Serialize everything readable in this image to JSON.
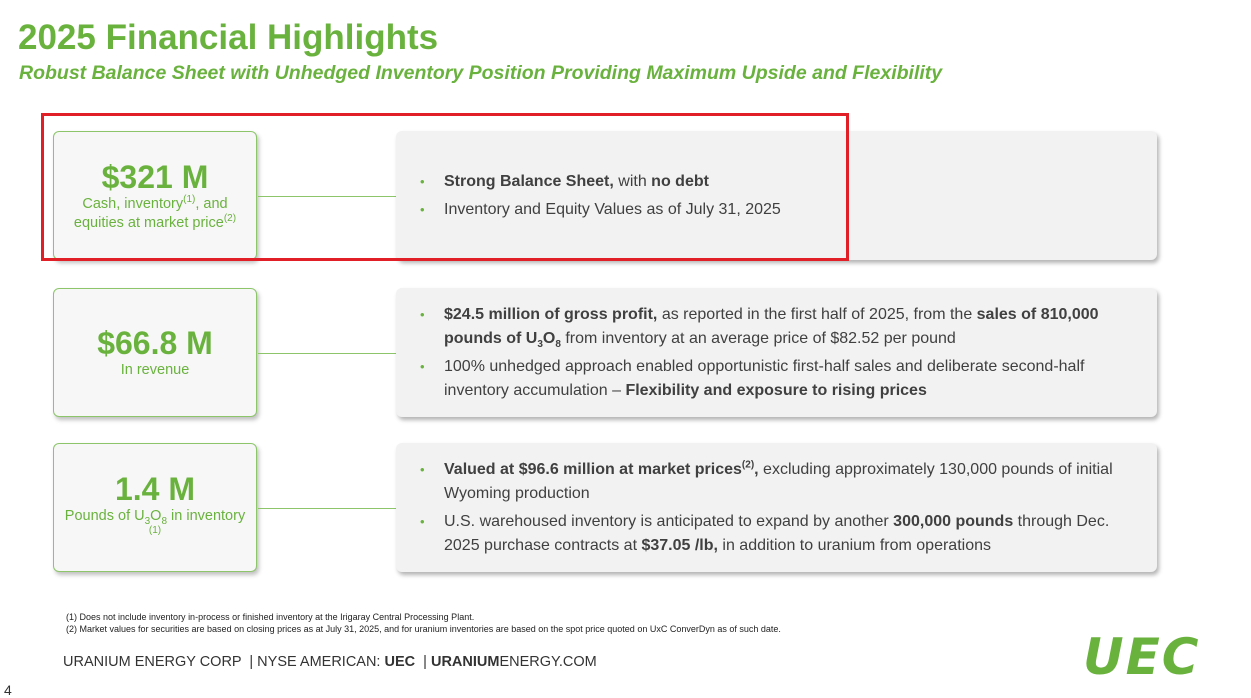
{
  "header": {
    "title": "2025 Financial Highlights",
    "subtitle": "Robust Balance Sheet with Unhedged Inventory Position Providing Maximum Upside and Flexibility"
  },
  "highlights": [
    {
      "metric": "$321 M",
      "caption": [
        {
          "text": "Cash, inventory"
        },
        {
          "text": "(1)",
          "style": "sup"
        },
        {
          "text": ", and equities at market price"
        },
        {
          "text": "(2)",
          "style": "sup"
        }
      ],
      "bullets": [
        [
          {
            "text": "Strong Balance Sheet,",
            "style": "b"
          },
          {
            "text": " with "
          },
          {
            "text": "no debt",
            "style": "b"
          }
        ],
        [
          {
            "text": "Inventory and Equity Values as of July 31, 2025"
          }
        ]
      ]
    },
    {
      "metric": "$66.8 M",
      "caption": [
        {
          "text": "In revenue"
        }
      ],
      "bullets": [
        [
          {
            "text": "$24.5 million of gross profit,",
            "style": "b"
          },
          {
            "text": " as reported in the first half of 2025, from the "
          },
          {
            "text": "sales of 810,000 pounds of U",
            "style": "b"
          },
          {
            "text": "3",
            "style": "b-sub"
          },
          {
            "text": "O",
            "style": "b"
          },
          {
            "text": "8",
            "style": "b-sub"
          },
          {
            "text": " from inventory at an average price of $82.52 per pound"
          }
        ],
        [
          {
            "text": "100% unhedged approach enabled opportunistic first-half sales and deliberate second-half inventory accumulation – "
          },
          {
            "text": "Flexibility and exposure to rising prices",
            "style": "b"
          }
        ]
      ]
    },
    {
      "metric": "1.4 M",
      "caption": [
        {
          "text": "Pounds of U"
        },
        {
          "text": "3",
          "style": "sub"
        },
        {
          "text": "O"
        },
        {
          "text": "8",
          "style": "sub"
        },
        {
          "text": " in inventory "
        },
        {
          "text": "(1)",
          "style": "sup"
        }
      ],
      "bullets": [
        [
          {
            "text": "Valued at $96.6 million at market prices",
            "style": "b"
          },
          {
            "text": "(2)",
            "style": "b-sup"
          },
          {
            "text": ",",
            "style": "b"
          },
          {
            "text": " excluding approximately 130,000 pounds of initial Wyoming production"
          }
        ],
        [
          {
            "text": "U.S. warehoused inventory is anticipated to expand by another "
          },
          {
            "text": "300,000 pounds",
            "style": "b"
          },
          {
            "text": " through Dec. 2025 purchase contracts at "
          },
          {
            "text": "$37.05 /lb,",
            "style": "b"
          },
          {
            "text": " in addition to uranium from operations"
          }
        ]
      ]
    }
  ],
  "footnotes": [
    "(1) Does not include inventory in-process or finished inventory at the Irigaray Central Processing Plant.",
    "(2) Market values for securities are based on closing prices as at July 31, 2025, and for uranium inventories are based on the spot price quoted on UxC ConverDyn as of such date."
  ],
  "footer": [
    {
      "text": "URANIUM ENERGY CORP  | NYSE AMERICAN: "
    },
    {
      "text": "UEC",
      "style": "b"
    },
    {
      "text": "  | "
    },
    {
      "text": "URANIUM",
      "style": "b"
    },
    {
      "text": "ENERGY.COM"
    }
  ],
  "logo": "UEC",
  "page_number": "4"
}
